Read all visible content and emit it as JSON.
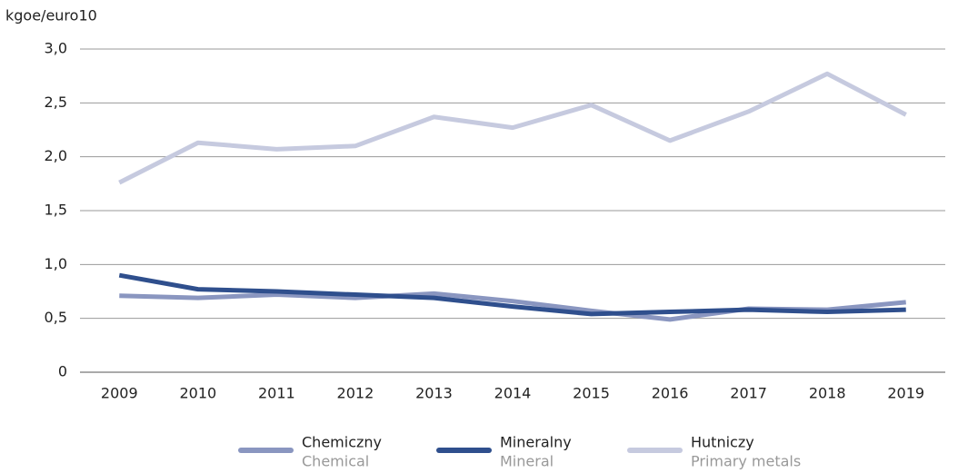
{
  "chart_data": {
    "type": "line",
    "y_label": "kgoe/euro10",
    "categories": [
      "2009",
      "2010",
      "2011",
      "2012",
      "2013",
      "2014",
      "2015",
      "2016",
      "2017",
      "2018",
      "2019"
    ],
    "series": [
      {
        "name": "Chemiczny",
        "name_en": "Chemical",
        "color": "#8a96c0",
        "values": [
          0.71,
          0.69,
          0.72,
          0.69,
          0.73,
          0.66,
          0.57,
          0.49,
          0.59,
          0.58,
          0.65
        ]
      },
      {
        "name": "Mineralny",
        "name_en": "Mineral",
        "color": "#2f4f8d",
        "values": [
          0.9,
          0.77,
          0.75,
          0.72,
          0.69,
          0.61,
          0.54,
          0.56,
          0.58,
          0.56,
          0.58
        ]
      },
      {
        "name": "Hutniczy",
        "name_en": "Primary metals",
        "color": "#c6cadf",
        "values": [
          1.76,
          2.13,
          2.07,
          2.1,
          2.37,
          2.27,
          2.48,
          2.15,
          2.42,
          2.77,
          2.39
        ]
      }
    ],
    "ylim": [
      0,
      3
    ],
    "yticks": [
      0,
      {
        "value": 0.5,
        "label": "0,5"
      },
      {
        "value": 1,
        "label": "1,0"
      },
      {
        "value": 1.5,
        "label": "1,5"
      },
      {
        "value": 2,
        "label": "2,0"
      },
      {
        "value": 2.5,
        "label": "2,5"
      },
      {
        "value": 3,
        "label": "3,0"
      }
    ],
    "grid": true
  }
}
